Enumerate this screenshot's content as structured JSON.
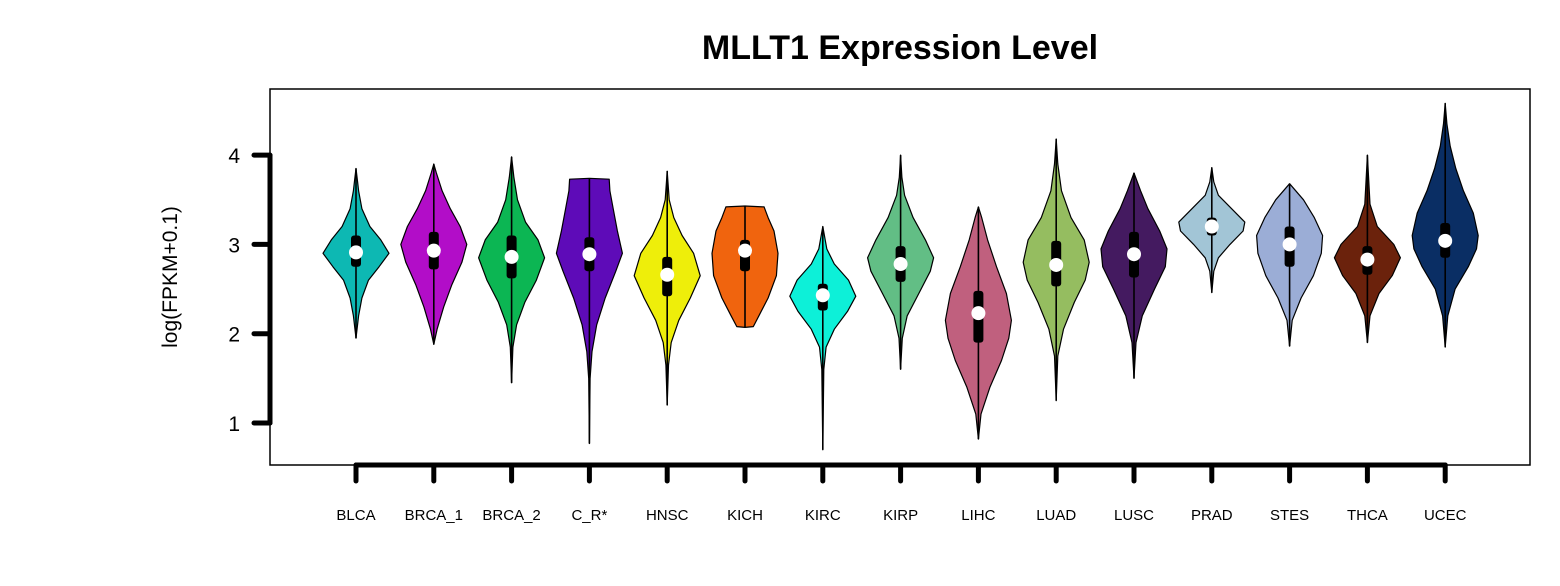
{
  "chart_data": {
    "type": "violin",
    "title": "MLLT1 Expression Level",
    "xlabel": "",
    "ylabel": "log(FPKM+0.1)",
    "ylim": [
      0.55,
      4.75
    ],
    "yticks": [
      "1",
      "2",
      "3",
      "4"
    ],
    "categories": [
      "BLCA",
      "BRCA_1",
      "BRCA_2",
      "C_R*",
      "HNSC",
      "KICH",
      "KIRC",
      "KIRP",
      "LIHC",
      "LUAD",
      "LUSC",
      "PRAD",
      "STES",
      "THCA",
      "UCEC"
    ],
    "colors": [
      "#0DB8B3",
      "#B20DC8",
      "#0CB653",
      "#5E0BB8",
      "#EEEE0A",
      "#F0640E",
      "#0DF0D8",
      "#62BE85",
      "#C0607E",
      "#95BD60",
      "#441A60",
      "#A2C5D6",
      "#9BADD6",
      "#6B220C",
      "#0A2E64"
    ],
    "series": [
      {
        "min": 1.95,
        "max": 3.85,
        "q1": 2.75,
        "q3": 3.1,
        "median": 2.91,
        "widths": [
          [
            1.95,
            0
          ],
          [
            2.2,
            0.08
          ],
          [
            2.4,
            0.18
          ],
          [
            2.6,
            0.38
          ],
          [
            2.75,
            0.7
          ],
          [
            2.9,
            1.0
          ],
          [
            3.05,
            0.75
          ],
          [
            3.2,
            0.42
          ],
          [
            3.4,
            0.18
          ],
          [
            3.6,
            0.08
          ],
          [
            3.7,
            0.05
          ],
          [
            3.85,
            0
          ]
        ]
      },
      {
        "min": 1.88,
        "max": 3.9,
        "q1": 2.72,
        "q3": 3.14,
        "median": 2.93,
        "widths": [
          [
            1.88,
            0
          ],
          [
            2.05,
            0.1
          ],
          [
            2.3,
            0.3
          ],
          [
            2.55,
            0.55
          ],
          [
            2.8,
            0.85
          ],
          [
            3.0,
            1.0
          ],
          [
            3.2,
            0.8
          ],
          [
            3.4,
            0.5
          ],
          [
            3.6,
            0.25
          ],
          [
            3.8,
            0.08
          ],
          [
            3.9,
            0
          ]
        ]
      },
      {
        "min": 1.45,
        "max": 3.98,
        "q1": 2.62,
        "q3": 3.1,
        "median": 2.86,
        "widths": [
          [
            1.45,
            0
          ],
          [
            1.85,
            0.04
          ],
          [
            2.1,
            0.15
          ],
          [
            2.35,
            0.4
          ],
          [
            2.6,
            0.75
          ],
          [
            2.85,
            1.0
          ],
          [
            3.05,
            0.8
          ],
          [
            3.25,
            0.42
          ],
          [
            3.5,
            0.18
          ],
          [
            3.75,
            0.07
          ],
          [
            3.98,
            0
          ]
        ]
      },
      {
        "min": 0.77,
        "max": 3.74,
        "q1": 2.7,
        "q3": 3.08,
        "median": 2.89,
        "widths": [
          [
            0.77,
            0
          ],
          [
            1.5,
            0.02
          ],
          [
            1.8,
            0.08
          ],
          [
            2.1,
            0.22
          ],
          [
            2.4,
            0.48
          ],
          [
            2.7,
            0.8
          ],
          [
            2.9,
            1.0
          ],
          [
            3.15,
            0.85
          ],
          [
            3.4,
            0.72
          ],
          [
            3.6,
            0.62
          ],
          [
            3.73,
            0.6
          ],
          [
            3.74,
            0
          ]
        ]
      },
      {
        "min": 1.2,
        "max": 3.82,
        "q1": 2.42,
        "q3": 2.86,
        "median": 2.66,
        "widths": [
          [
            1.2,
            0
          ],
          [
            1.65,
            0.04
          ],
          [
            1.9,
            0.12
          ],
          [
            2.15,
            0.35
          ],
          [
            2.4,
            0.7
          ],
          [
            2.65,
            1.0
          ],
          [
            2.9,
            0.8
          ],
          [
            3.1,
            0.45
          ],
          [
            3.3,
            0.2
          ],
          [
            3.5,
            0.06
          ],
          [
            3.82,
            0
          ]
        ]
      },
      {
        "min": 2.07,
        "max": 3.43,
        "q1": 2.7,
        "q3": 3.05,
        "median": 2.93,
        "widths": [
          [
            2.07,
            0
          ],
          [
            2.08,
            0.25
          ],
          [
            2.2,
            0.42
          ],
          [
            2.4,
            0.7
          ],
          [
            2.65,
            0.95
          ],
          [
            2.9,
            1.0
          ],
          [
            3.15,
            0.88
          ],
          [
            3.3,
            0.7
          ],
          [
            3.42,
            0.58
          ],
          [
            3.43,
            0
          ]
        ]
      },
      {
        "min": 0.7,
        "max": 3.2,
        "q1": 2.26,
        "q3": 2.56,
        "median": 2.43,
        "widths": [
          [
            0.7,
            0
          ],
          [
            1.6,
            0.03
          ],
          [
            1.85,
            0.1
          ],
          [
            2.05,
            0.35
          ],
          [
            2.25,
            0.75
          ],
          [
            2.42,
            1.0
          ],
          [
            2.6,
            0.78
          ],
          [
            2.78,
            0.35
          ],
          [
            2.95,
            0.12
          ],
          [
            3.2,
            0
          ]
        ]
      },
      {
        "min": 1.6,
        "max": 4.0,
        "q1": 2.58,
        "q3": 2.98,
        "median": 2.78,
        "widths": [
          [
            1.6,
            0
          ],
          [
            1.95,
            0.05
          ],
          [
            2.2,
            0.2
          ],
          [
            2.45,
            0.55
          ],
          [
            2.7,
            0.9
          ],
          [
            2.85,
            1.0
          ],
          [
            3.05,
            0.75
          ],
          [
            3.3,
            0.38
          ],
          [
            3.55,
            0.12
          ],
          [
            3.75,
            0.04
          ],
          [
            4.0,
            0
          ]
        ]
      },
      {
        "min": 0.82,
        "max": 3.42,
        "q1": 1.9,
        "q3": 2.48,
        "median": 2.23,
        "widths": [
          [
            0.82,
            0
          ],
          [
            1.1,
            0.08
          ],
          [
            1.4,
            0.35
          ],
          [
            1.7,
            0.7
          ],
          [
            1.95,
            0.92
          ],
          [
            2.15,
            1.0
          ],
          [
            2.45,
            0.85
          ],
          [
            2.75,
            0.55
          ],
          [
            3.05,
            0.28
          ],
          [
            3.3,
            0.1
          ],
          [
            3.42,
            0
          ]
        ]
      },
      {
        "min": 1.25,
        "max": 4.18,
        "q1": 2.53,
        "q3": 3.04,
        "median": 2.77,
        "widths": [
          [
            1.25,
            0
          ],
          [
            1.75,
            0.05
          ],
          [
            2.05,
            0.22
          ],
          [
            2.35,
            0.55
          ],
          [
            2.6,
            0.88
          ],
          [
            2.8,
            1.0
          ],
          [
            3.05,
            0.85
          ],
          [
            3.3,
            0.45
          ],
          [
            3.6,
            0.16
          ],
          [
            3.9,
            0.05
          ],
          [
            4.18,
            0
          ]
        ]
      },
      {
        "min": 1.5,
        "max": 3.8,
        "q1": 2.63,
        "q3": 3.14,
        "median": 2.89,
        "widths": [
          [
            1.5,
            0
          ],
          [
            1.9,
            0.06
          ],
          [
            2.2,
            0.25
          ],
          [
            2.5,
            0.62
          ],
          [
            2.75,
            0.95
          ],
          [
            2.95,
            1.0
          ],
          [
            3.15,
            0.78
          ],
          [
            3.4,
            0.42
          ],
          [
            3.6,
            0.2
          ],
          [
            3.8,
            0
          ]
        ]
      },
      {
        "min": 2.46,
        "max": 3.86,
        "q1": 3.1,
        "q3": 3.3,
        "median": 3.2,
        "widths": [
          [
            2.46,
            0
          ],
          [
            2.7,
            0.06
          ],
          [
            2.85,
            0.2
          ],
          [
            3.0,
            0.55
          ],
          [
            3.15,
            0.95
          ],
          [
            3.25,
            1.0
          ],
          [
            3.4,
            0.6
          ],
          [
            3.55,
            0.2
          ],
          [
            3.7,
            0.06
          ],
          [
            3.86,
            0
          ]
        ]
      },
      {
        "min": 1.86,
        "max": 3.68,
        "q1": 2.75,
        "q3": 3.2,
        "median": 3.0,
        "widths": [
          [
            1.86,
            0
          ],
          [
            2.15,
            0.08
          ],
          [
            2.4,
            0.35
          ],
          [
            2.65,
            0.72
          ],
          [
            2.9,
            0.96
          ],
          [
            3.1,
            1.0
          ],
          [
            3.3,
            0.75
          ],
          [
            3.5,
            0.42
          ],
          [
            3.68,
            0
          ]
        ]
      },
      {
        "min": 1.9,
        "max": 4.0,
        "q1": 2.66,
        "q3": 2.98,
        "median": 2.83,
        "widths": [
          [
            1.9,
            0
          ],
          [
            2.2,
            0.08
          ],
          [
            2.45,
            0.35
          ],
          [
            2.65,
            0.75
          ],
          [
            2.85,
            1.0
          ],
          [
            3.0,
            0.8
          ],
          [
            3.2,
            0.3
          ],
          [
            3.45,
            0.08
          ],
          [
            4.0,
            0
          ]
        ]
      },
      {
        "min": 1.85,
        "max": 4.58,
        "q1": 2.85,
        "q3": 3.24,
        "median": 3.04,
        "widths": [
          [
            1.85,
            0
          ],
          [
            2.2,
            0.08
          ],
          [
            2.5,
            0.3
          ],
          [
            2.75,
            0.7
          ],
          [
            2.95,
            0.95
          ],
          [
            3.1,
            1.0
          ],
          [
            3.35,
            0.85
          ],
          [
            3.6,
            0.55
          ],
          [
            3.85,
            0.32
          ],
          [
            4.1,
            0.15
          ],
          [
            4.35,
            0.05
          ],
          [
            4.58,
            0
          ]
        ]
      }
    ]
  }
}
